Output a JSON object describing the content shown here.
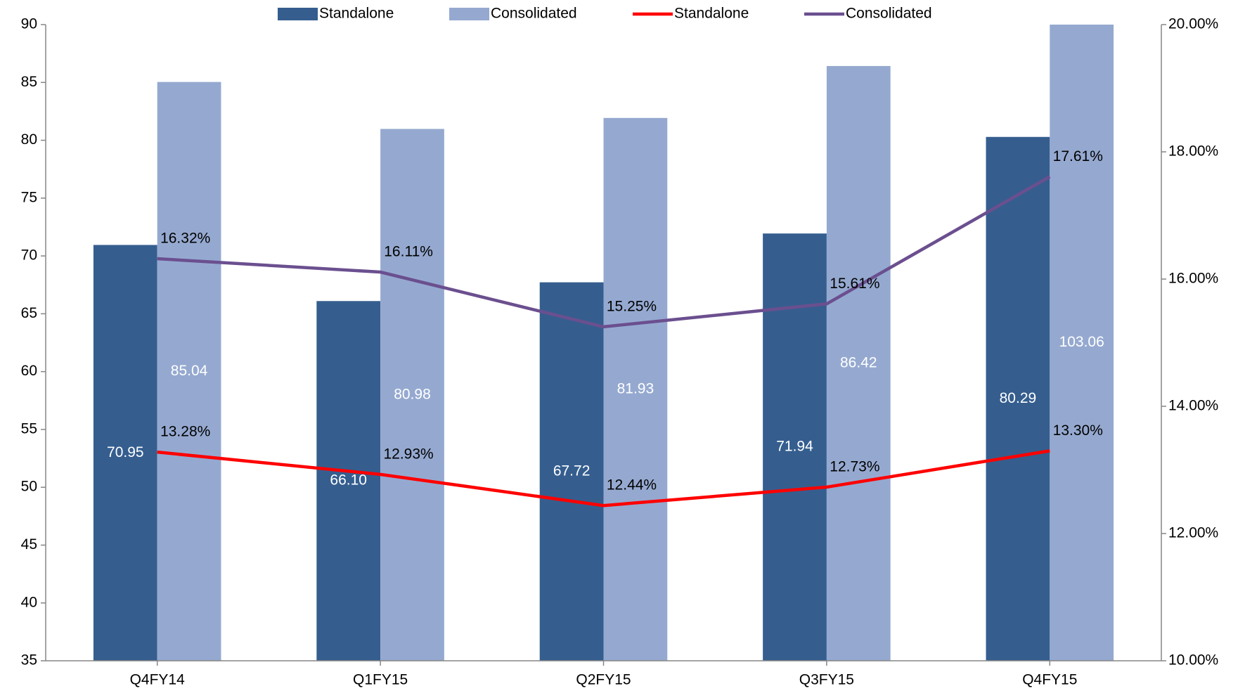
{
  "chart_data": {
    "type": "bar",
    "categories": [
      "Q4FY14",
      "Q1FY15",
      "Q2FY15",
      "Q3FY15",
      "Q4FY15"
    ],
    "series": [
      {
        "name": "Standalone",
        "type": "bar",
        "color": "#355e8f",
        "values": [
          70.95,
          66.1,
          67.72,
          71.94,
          80.29
        ],
        "value_labels": [
          "70.95",
          "66.10",
          "67.72",
          "71.94",
          "80.29"
        ]
      },
      {
        "name": "Consolidated",
        "type": "bar",
        "color": "#95a9d0",
        "values": [
          85.04,
          80.98,
          81.93,
          86.42,
          103.06
        ],
        "value_labels": [
          "85.04",
          "80.98",
          "81.93",
          "86.42",
          "103.06"
        ]
      },
      {
        "name": "Standalone",
        "type": "line",
        "axis": "y2",
        "color": "#ff0000",
        "values": [
          13.28,
          12.93,
          12.44,
          12.73,
          13.3
        ],
        "value_labels": [
          "13.28%",
          "12.93%",
          "12.44%",
          "12.73%",
          "13.30%"
        ]
      },
      {
        "name": "Consolidated",
        "type": "line",
        "axis": "y2",
        "color": "#6b4f8f",
        "values": [
          16.32,
          16.11,
          15.25,
          15.61,
          17.61
        ],
        "value_labels": [
          "16.32%",
          "16.11%",
          "15.25%",
          "15.61%",
          "17.61%"
        ]
      }
    ],
    "ylim": [
      35,
      90
    ],
    "yticks": [
      35,
      40,
      45,
      50,
      55,
      60,
      65,
      70,
      75,
      80,
      85,
      90
    ],
    "y2lim": [
      10,
      20
    ],
    "y2ticks": [
      {
        "value": 10,
        "label": "10.00%"
      },
      {
        "value": 12,
        "label": "12.00%"
      },
      {
        "value": 14,
        "label": "14.00%"
      },
      {
        "value": 16,
        "label": "16.00%"
      },
      {
        "value": 18,
        "label": "18.00%"
      },
      {
        "value": 20,
        "label": "20.00%"
      }
    ],
    "legend": "top"
  }
}
